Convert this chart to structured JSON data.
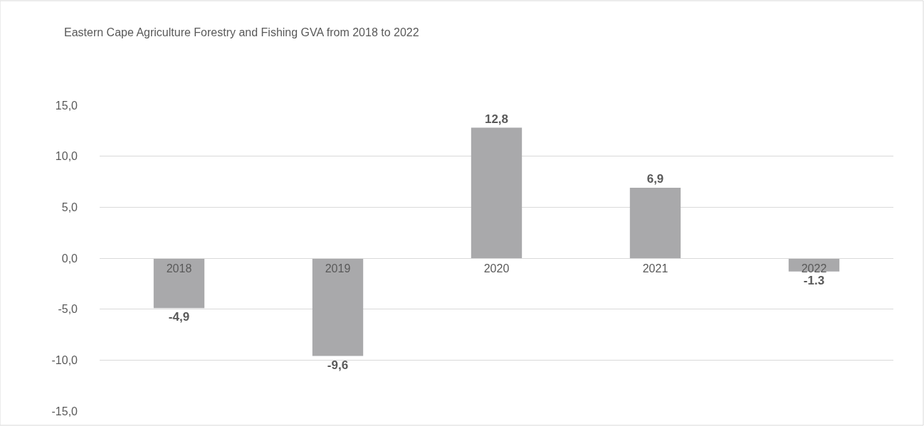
{
  "chart_data": {
    "type": "bar",
    "title": "Eastern Cape Agriculture Forestry and Fishing GVA from 2018 to 2022",
    "categories": [
      "2018",
      "2019",
      "2020",
      "2021",
      "2022"
    ],
    "values": [
      -4.9,
      -9.6,
      12.8,
      6.9,
      -1.3
    ],
    "value_labels": [
      "-4,9",
      "-9,6",
      "12,8",
      "6,9",
      "-1.3"
    ],
    "color": "#a9a9ab",
    "ylim": [
      -15,
      15
    ],
    "yticks": [
      {
        "value": -15,
        "label": "-15,0"
      },
      {
        "value": -10,
        "label": "-10,0"
      },
      {
        "value": -5,
        "label": "-5,0"
      },
      {
        "value": 0,
        "label": "0,0"
      },
      {
        "value": 5,
        "label": "5,0"
      },
      {
        "value": 10,
        "label": "10,0"
      },
      {
        "value": 15,
        "label": "15,0"
      }
    ],
    "grid": "y",
    "legend": false
  }
}
